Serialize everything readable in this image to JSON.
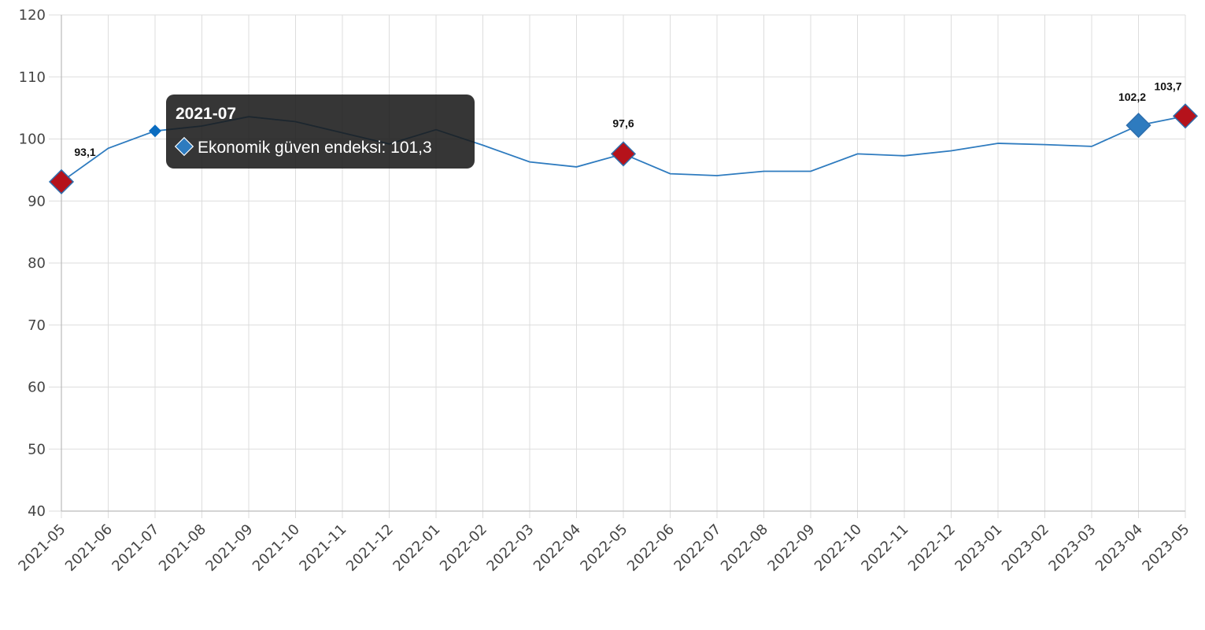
{
  "chart_data": {
    "type": "line",
    "categories": [
      "2021-05",
      "2021-06",
      "2021-07",
      "2021-08",
      "2021-09",
      "2021-10",
      "2021-11",
      "2021-12",
      "2022-01",
      "2022-02",
      "2022-03",
      "2022-04",
      "2022-05",
      "2022-06",
      "2022-07",
      "2022-08",
      "2022-09",
      "2022-10",
      "2022-11",
      "2022-12",
      "2023-01",
      "2023-02",
      "2023-03",
      "2023-04",
      "2023-05"
    ],
    "series": [
      {
        "values": [
          93.1,
          98.5,
          101.3,
          102.1,
          103.6,
          102.8,
          101.0,
          99.2,
          101.5,
          99.0,
          96.3,
          95.5,
          97.6,
          94.4,
          94.1,
          94.8,
          94.8,
          97.6,
          97.3,
          98.1,
          99.3,
          99.1,
          98.8,
          102.2,
          103.7
        ]
      }
    ],
    "ylim": [
      40,
      120
    ],
    "yticks": [
      "40",
      "50",
      "60",
      "70",
      "80",
      "90",
      "100",
      "110",
      "120"
    ],
    "grid": true,
    "colors": {
      "line": "#2e7bbf",
      "marker_red": "#b5121b",
      "marker_blue": "#2e7bbf",
      "tooltip_bg": "#1a1a1a"
    },
    "highlights": [
      {
        "index": 0,
        "label": "93,1",
        "color": "#b5121b"
      },
      {
        "index": 12,
        "label": "97,6",
        "color": "#b5121b"
      },
      {
        "index": 23,
        "label": "102,2",
        "color": "#2e7bbf"
      },
      {
        "index": 24,
        "label": "103,7",
        "color": "#b5121b"
      }
    ],
    "hover_index": 2,
    "tooltip": {
      "title": "2021-07",
      "text": "Ekonomik güven endeksi: 101,3",
      "marker_icon": "diamond-icon"
    }
  }
}
